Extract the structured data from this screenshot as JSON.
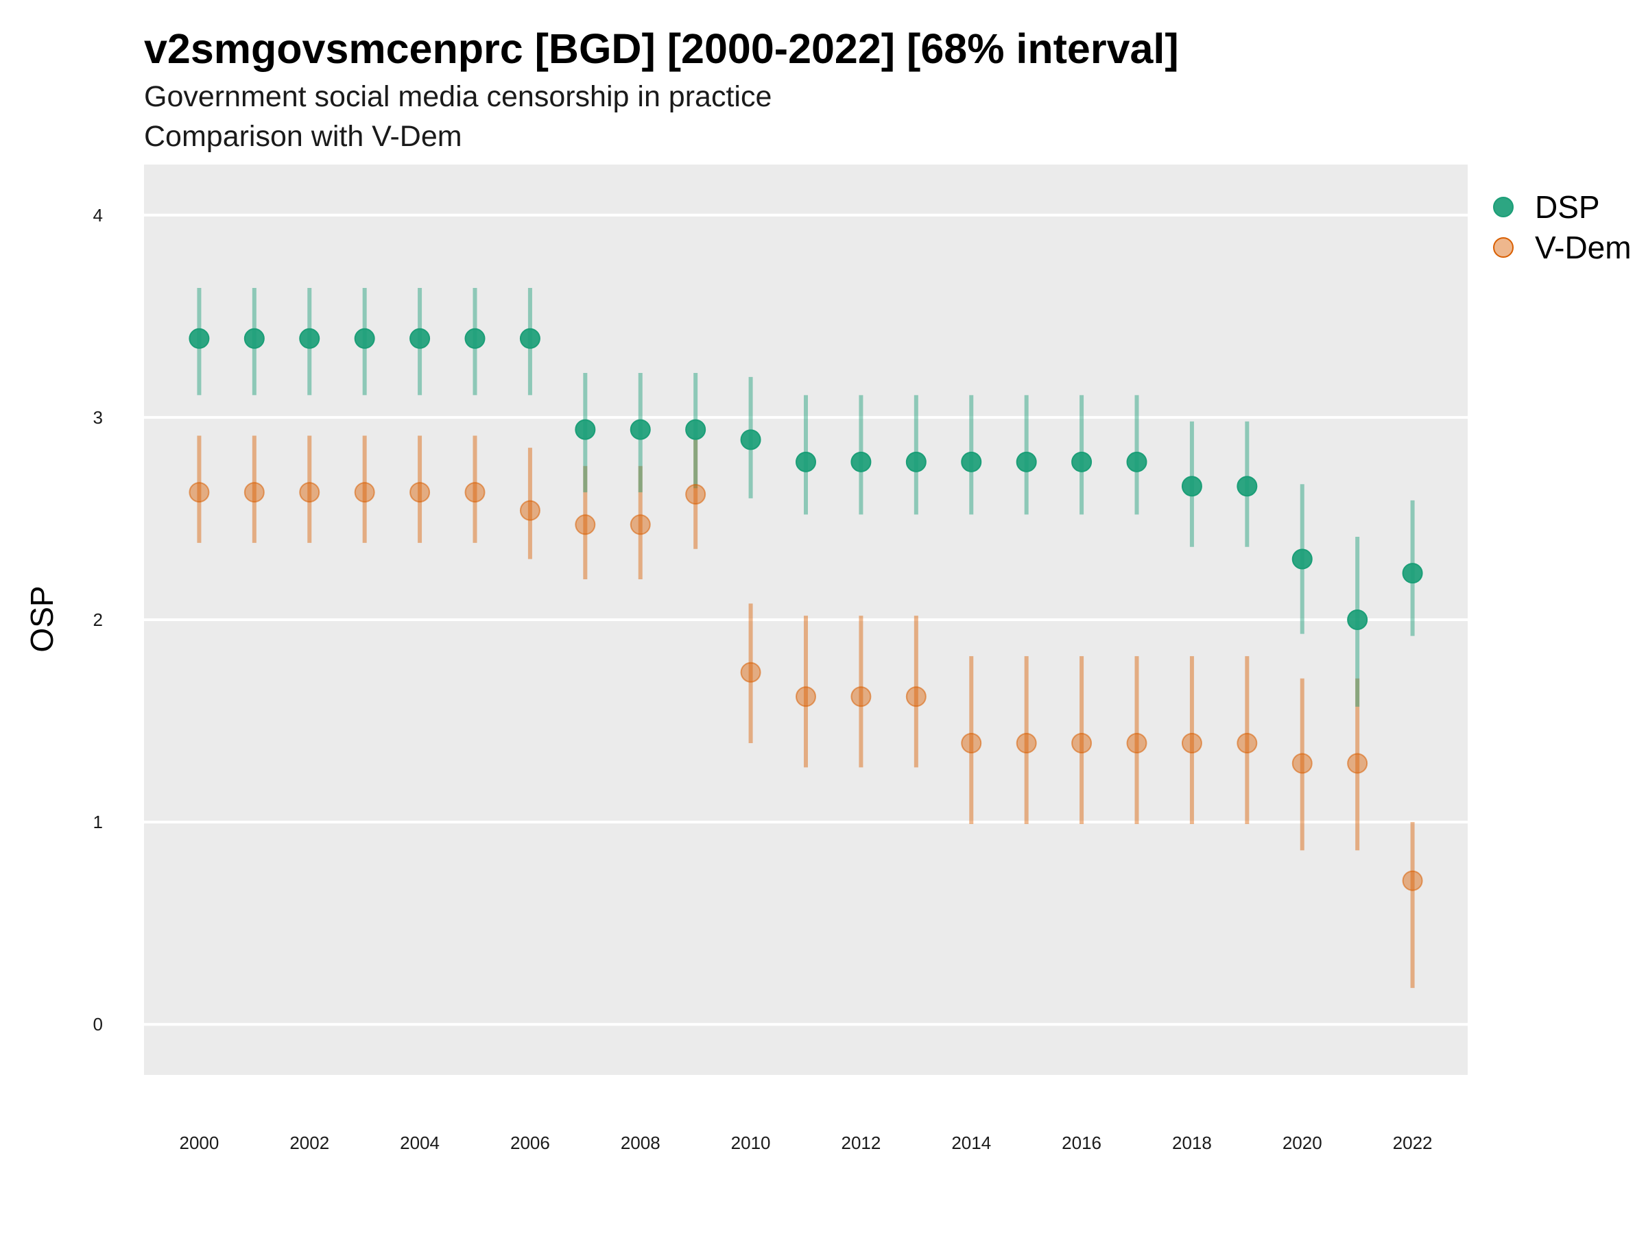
{
  "chart_data": {
    "type": "scatter",
    "title": "v2smgovsmcenprc [BGD] [2000-2022] [68% interval]",
    "subtitle_lines": [
      "Government social media censorship in practice",
      "Comparison with V-Dem"
    ],
    "xlabel": "",
    "ylabel": "OSP",
    "xlim": [
      1999,
      2023
    ],
    "ylim": [
      -0.25,
      4.25
    ],
    "yticks": [
      0,
      1,
      2,
      3,
      4
    ],
    "xticks": [
      2000,
      2002,
      2004,
      2006,
      2008,
      2010,
      2012,
      2014,
      2016,
      2018,
      2020,
      2022
    ],
    "grid": true,
    "legend_position": "right",
    "years": [
      2000,
      2001,
      2002,
      2003,
      2004,
      2005,
      2006,
      2007,
      2008,
      2009,
      2010,
      2011,
      2012,
      2013,
      2014,
      2015,
      2016,
      2017,
      2018,
      2019,
      2020,
      2021,
      2022
    ],
    "series": [
      {
        "name": "DSP",
        "color": "#1b9e77",
        "values": [
          3.39,
          3.39,
          3.39,
          3.39,
          3.39,
          3.39,
          3.39,
          2.94,
          2.94,
          2.94,
          2.89,
          2.78,
          2.78,
          2.78,
          2.78,
          2.78,
          2.78,
          2.78,
          2.66,
          2.66,
          2.3,
          2.0,
          2.23
        ],
        "lower": [
          3.11,
          3.11,
          3.11,
          3.11,
          3.11,
          3.11,
          3.11,
          2.63,
          2.63,
          2.65,
          2.6,
          2.52,
          2.52,
          2.52,
          2.52,
          2.52,
          2.52,
          2.52,
          2.36,
          2.36,
          1.93,
          1.57,
          1.92
        ],
        "upper": [
          3.64,
          3.64,
          3.64,
          3.64,
          3.64,
          3.64,
          3.64,
          3.22,
          3.22,
          3.22,
          3.2,
          3.11,
          3.11,
          3.11,
          3.11,
          3.11,
          3.11,
          3.11,
          2.98,
          2.98,
          2.67,
          2.41,
          2.59
        ]
      },
      {
        "name": "V-Dem",
        "color": "#d95f02",
        "values": [
          2.63,
          2.63,
          2.63,
          2.63,
          2.63,
          2.63,
          2.54,
          2.47,
          2.47,
          2.62,
          1.74,
          1.62,
          1.62,
          1.62,
          1.39,
          1.39,
          1.39,
          1.39,
          1.39,
          1.39,
          1.29,
          1.29,
          0.71
        ],
        "lower": [
          2.38,
          2.38,
          2.38,
          2.38,
          2.38,
          2.38,
          2.3,
          2.2,
          2.2,
          2.35,
          1.39,
          1.27,
          1.27,
          1.27,
          0.99,
          0.99,
          0.99,
          0.99,
          0.99,
          0.99,
          0.86,
          0.86,
          0.18
        ],
        "upper": [
          2.91,
          2.91,
          2.91,
          2.91,
          2.91,
          2.91,
          2.85,
          2.76,
          2.76,
          2.9,
          2.08,
          2.02,
          2.02,
          2.02,
          1.82,
          1.82,
          1.82,
          1.82,
          1.82,
          1.82,
          1.71,
          1.71,
          1.0
        ]
      }
    ]
  }
}
